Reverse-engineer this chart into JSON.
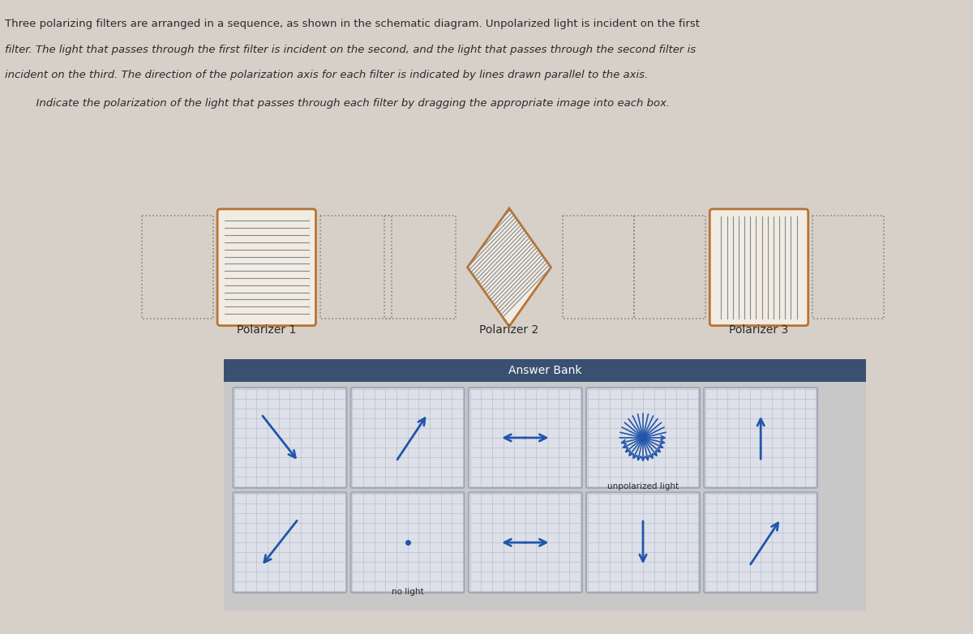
{
  "bg_color": "#d6d0c8",
  "text_color": "#2a2a2a",
  "title_line1": "Three polarizing filters are arranged in a sequence, as shown in the schematic diagram. Unpolarized light is incident on the first",
  "title_line2": "filter. The light that passes through the first filter is incident on the second, and the light that passes through the second filter is",
  "title_line3": "incident on the third. The direction of the polarization axis for each filter is indicated by lines drawn parallel to the axis.",
  "subtitle_text": "  Indicate the polarization of the light that passes through each filter by dragging the appropriate image into each box.",
  "polarizer_labels": [
    "Polarizer 1",
    "Polarizer 2",
    "Polarizer 3"
  ],
  "filter_border_color": "#b87333",
  "filter_fill_color": "#f0ece4",
  "filter_line_color": "#888888",
  "answer_bank_header_color": "#3a5070",
  "answer_bank_header_text": "Answer Bank",
  "answer_bank_bg": "#c8c8c8",
  "card_bg": "#dde0e8",
  "card_border": "#a0a8b8",
  "arrow_color": "#2255aa",
  "unpolarized_label": "unpolarized light",
  "no_light_label": "no light"
}
